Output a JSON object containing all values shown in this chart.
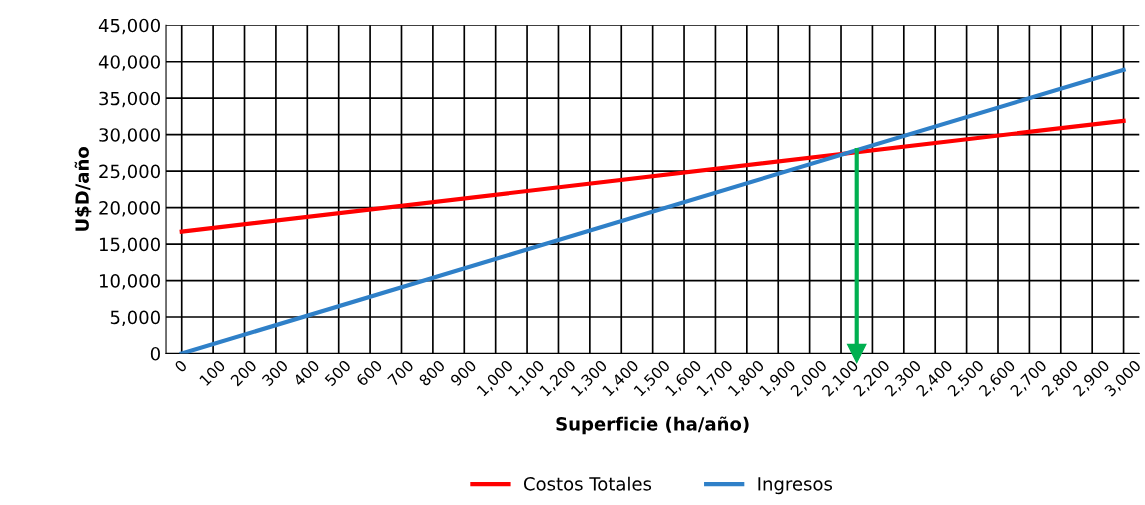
{
  "chart_data": {
    "type": "line",
    "xlabel": "Superficie (ha/año)",
    "ylabel": "U$D/año",
    "xlim": [
      -50,
      3050
    ],
    "xticks": [
      {
        "value": 0,
        "label": "0"
      },
      {
        "value": 100,
        "label": "100"
      },
      {
        "value": 200,
        "label": "200"
      },
      {
        "value": 300,
        "label": "300"
      },
      {
        "value": 400,
        "label": "400"
      },
      {
        "value": 500,
        "label": "500"
      },
      {
        "value": 600,
        "label": "600"
      },
      {
        "value": 700,
        "label": "700"
      },
      {
        "value": 800,
        "label": "800"
      },
      {
        "value": 900,
        "label": "900"
      },
      {
        "value": 1000,
        "label": "1,000"
      },
      {
        "value": 1100,
        "label": "1,100"
      },
      {
        "value": 1200,
        "label": "1,200"
      },
      {
        "value": 1300,
        "label": "1,300"
      },
      {
        "value": 1400,
        "label": "1,400"
      },
      {
        "value": 1500,
        "label": "1,500"
      },
      {
        "value": 1600,
        "label": "1,600"
      },
      {
        "value": 1700,
        "label": "1,700"
      },
      {
        "value": 1800,
        "label": "1,800"
      },
      {
        "value": 1900,
        "label": "1,900"
      },
      {
        "value": 2000,
        "label": "2,000"
      },
      {
        "value": 2100,
        "label": "2,100"
      },
      {
        "value": 2200,
        "label": "2,200"
      },
      {
        "value": 2300,
        "label": "2,300"
      },
      {
        "value": 2400,
        "label": "2,400"
      },
      {
        "value": 2500,
        "label": "2,500"
      },
      {
        "value": 2600,
        "label": "2,600"
      },
      {
        "value": 2700,
        "label": "2,700"
      },
      {
        "value": 2800,
        "label": "2,800"
      },
      {
        "value": 2900,
        "label": "2,900"
      },
      {
        "value": 3000,
        "label": "3,000"
      }
    ],
    "ylim": [
      0,
      45000
    ],
    "yticks": [
      0,
      {
        "value": 5000,
        "label": "5,000"
      },
      {
        "value": 10000,
        "label": "10,000"
      },
      {
        "value": 15000,
        "label": "15,000"
      },
      {
        "value": 20000,
        "label": "20,000"
      },
      {
        "value": 25000,
        "label": "25,000"
      },
      {
        "value": 30000,
        "label": "30,000"
      },
      {
        "value": 35000,
        "label": "35,000"
      },
      {
        "value": 40000,
        "label": "40,000"
      },
      {
        "value": 45000,
        "label": "45,000"
      }
    ],
    "x": [
      0,
      3000
    ],
    "series": [
      {
        "name": "Costos Totales",
        "color": "#ff0000",
        "values": [
          16700,
          31900
        ]
      },
      {
        "name": "Ingresos",
        "color": "#2f80c8",
        "values": [
          0,
          38900
        ]
      },
      {
        "color": "#00b050",
        "x": [
          2150,
          2150
        ],
        "values": [
          27900,
          0
        ],
        "marker": "triangle"
      }
    ],
    "grid": true,
    "legend": "bottom",
    "marker": "none",
    "line_style": "solid"
  }
}
